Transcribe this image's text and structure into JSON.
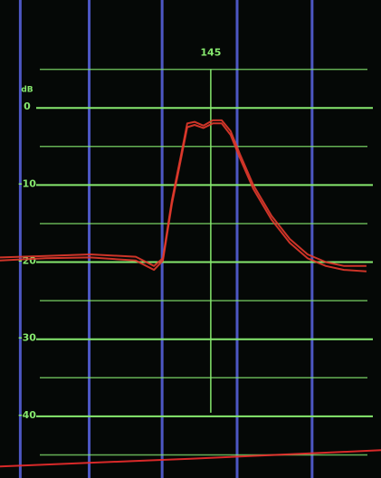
{
  "chart_data": {
    "type": "line",
    "y_label": "dB",
    "marker": 145,
    "xlim": [
      139.8,
      149.2
    ],
    "ylim": [
      -48,
      14
    ],
    "yticks": [
      0,
      -10,
      -20,
      -30,
      -40
    ],
    "minor_yticks": [
      5,
      -5,
      -15,
      -25,
      -35,
      -45
    ],
    "vlines": [
      140.3,
      142.0,
      143.8,
      145.65,
      147.5
    ],
    "grid": true,
    "grid_color": "#86e86e",
    "vline_color": "#5560d8",
    "series": [
      {
        "color": "#e33a2c",
        "x": [
          139.8,
          140.92,
          142.03,
          143.15,
          143.6,
          143.82,
          144.04,
          144.27,
          144.42,
          144.6,
          144.82,
          145.05,
          145.27,
          145.49,
          145.72,
          146.05,
          146.5,
          146.95,
          147.39,
          147.84,
          148.29,
          148.84
        ],
        "values": [
          -19.4,
          -19.2,
          -19.0,
          -19.3,
          -20.5,
          -19.5,
          -12,
          -6,
          -2,
          -1.8,
          -2.3,
          -1.6,
          -1.6,
          -3,
          -6,
          -10,
          -14,
          -17,
          -19,
          -20,
          -20.5,
          -20.5
        ]
      },
      {
        "color": "#e33a2c",
        "x": [
          139.8,
          140.92,
          142.03,
          143.15,
          143.6,
          143.82,
          144.04,
          144.27,
          144.42,
          144.6,
          144.82,
          145.05,
          145.27,
          145.49,
          145.72,
          146.05,
          146.5,
          146.95,
          147.39,
          147.84,
          148.29,
          148.84
        ],
        "values": [
          -19.8,
          -19.5,
          -19.4,
          -19.8,
          -21,
          -19.8,
          -12.5,
          -6.5,
          -2.5,
          -2.2,
          -2.6,
          -2,
          -2,
          -3.5,
          -6.5,
          -10.5,
          -14.5,
          -17.5,
          -19.5,
          -20.5,
          -21,
          -21.2
        ]
      },
      {
        "color": "#ef2e2e",
        "x": [
          139.8,
          144.5,
          149.2
        ],
        "values": [
          -46.5,
          -45.5,
          -44.4
        ]
      }
    ]
  }
}
